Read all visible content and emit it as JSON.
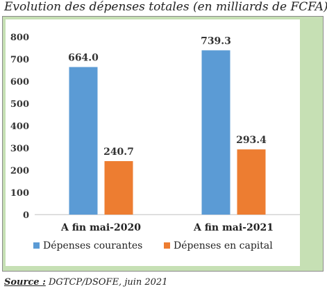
{
  "title": "Evolution des dépenses totales (en milliards de FCFA)",
  "source_label": "Source :",
  "source_text": " DGTCP/DSOFE, juin 2021",
  "chart_data": {
    "type": "bar",
    "title": "Evolution des dépenses totales (en milliards de FCFA)",
    "categories": [
      "A fin mai-2020",
      "A fin mai-2021"
    ],
    "series": [
      {
        "name": "Dépenses courantes",
        "color": "#5b9bd5",
        "values": [
          664.0,
          739.3
        ],
        "labels": [
          "664.0",
          "739.3"
        ]
      },
      {
        "name": "Dépenses en capital",
        "color": "#ed7d31",
        "values": [
          240.7,
          293.4
        ],
        "labels": [
          "240.7",
          "293.4"
        ]
      }
    ],
    "ylim": [
      0,
      800
    ],
    "yticks": [
      "0",
      "100",
      "200",
      "300",
      "400",
      "500",
      "600",
      "700",
      "800"
    ],
    "legend_position": "bottom",
    "grid": false
  }
}
